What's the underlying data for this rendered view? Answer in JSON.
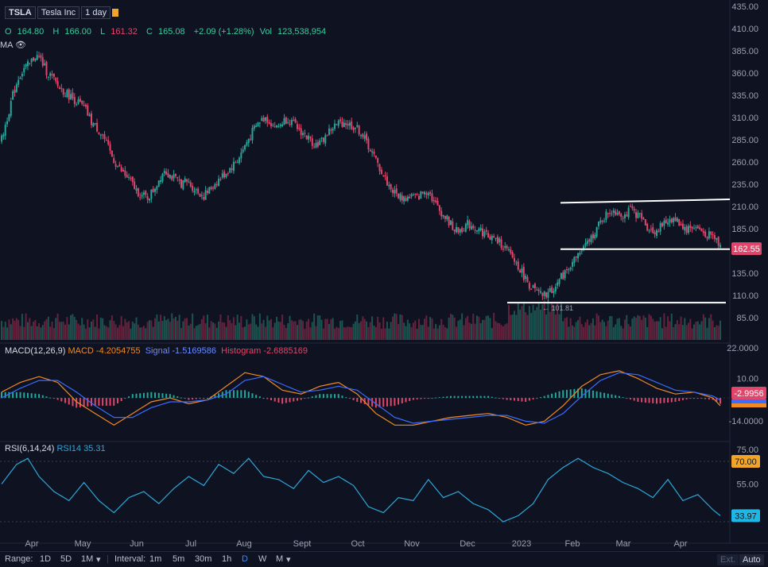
{
  "header": {
    "symbol": "TSLA",
    "name": "Tesla Inc",
    "interval": "1 day"
  },
  "ohlc": {
    "o_label": "O",
    "o": "164.80",
    "h_label": "H",
    "h": "166.00",
    "l_label": "L",
    "l": "161.32",
    "c_label": "C",
    "c": "165.08",
    "change": "+2.09 (+1.28%)",
    "vol_label": "Vol",
    "vol": "123,538,954"
  },
  "ma_label": "MA",
  "macd": {
    "label": "MACD(12,26,9)",
    "macd_text": "MACD -4.2054755",
    "signal_text": "Signal -1.5169586",
    "hist_text": "Histogram -2.6885169",
    "badge_hist": "-2.9956",
    "badge_signal_color": "#3a6cff",
    "badge_macd_color": "#f08a22",
    "yticks": [
      "22.0000",
      "10.00",
      "-14.0000"
    ]
  },
  "rsi": {
    "label": "RSI(6,14,24)",
    "rsi_text": "RSI14 35.31",
    "badge_upper": "70.00",
    "badge_value": "33.97",
    "yticks": [
      "75.00",
      "55.00"
    ]
  },
  "price": {
    "yticks": [
      "435.00",
      "410.00",
      "385.00",
      "360.00",
      "335.00",
      "310.00",
      "285.00",
      "260.00",
      "235.00",
      "210.00",
      "185.00",
      "160.00",
      "135.00",
      "110.00",
      "85.00"
    ],
    "current_badge": "162.55",
    "low_annotation": "101.81"
  },
  "xaxis": {
    "labels": [
      "Apr",
      "May",
      "Jun",
      "Jul",
      "Aug",
      "Sept",
      "Oct",
      "Nov",
      "Dec",
      "2023",
      "Feb",
      "Mar",
      "Apr"
    ]
  },
  "bottombar": {
    "range_label": "Range:",
    "ranges": [
      "1D",
      "5D",
      "1M"
    ],
    "interval_label": "Interval:",
    "intervals": [
      "1m",
      "5m",
      "30m",
      "1h",
      "D",
      "W",
      "M"
    ],
    "active_interval": "D",
    "ext": "Ext.",
    "auto": "Auto"
  },
  "colors": {
    "up": "#26a69a",
    "down": "#e0466a",
    "macd_line": "#f08a22",
    "signal_line": "#3a6cff",
    "rsi_line": "#2aa8d8",
    "trendline": "#ffffff"
  },
  "chart_data": {
    "type": "candlestick",
    "symbol": "TSLA",
    "y_range": [
      85,
      435
    ],
    "x_labels": [
      "Apr",
      "May",
      "Jun",
      "Jul",
      "Aug",
      "Sept",
      "Oct",
      "Nov",
      "Dec",
      "2023",
      "Feb",
      "Mar",
      "Apr"
    ],
    "price_path": [
      [
        0,
        285
      ],
      [
        3,
        310
      ],
      [
        6,
        335
      ],
      [
        9,
        355
      ],
      [
        12,
        365
      ],
      [
        15,
        370
      ],
      [
        18,
        380
      ],
      [
        21,
        375
      ],
      [
        24,
        362
      ],
      [
        27,
        355
      ],
      [
        30,
        345
      ],
      [
        33,
        340
      ],
      [
        36,
        335
      ],
      [
        39,
        330
      ],
      [
        42,
        325
      ],
      [
        45,
        318
      ],
      [
        48,
        305
      ],
      [
        51,
        298
      ],
      [
        54,
        290
      ],
      [
        57,
        275
      ],
      [
        60,
        262
      ],
      [
        63,
        252
      ],
      [
        66,
        245
      ],
      [
        69,
        238
      ],
      [
        72,
        228
      ],
      [
        75,
        222
      ],
      [
        78,
        220
      ],
      [
        81,
        228
      ],
      [
        84,
        240
      ],
      [
        87,
        252
      ],
      [
        90,
        245
      ],
      [
        93,
        240
      ],
      [
        96,
        236
      ],
      [
        99,
        238
      ],
      [
        102,
        232
      ],
      [
        105,
        226
      ],
      [
        108,
        222
      ],
      [
        111,
        228
      ],
      [
        114,
        236
      ],
      [
        117,
        242
      ],
      [
        120,
        248
      ],
      [
        123,
        255
      ],
      [
        126,
        262
      ],
      [
        129,
        274
      ],
      [
        132,
        286
      ],
      [
        135,
        297
      ],
      [
        138,
        306
      ],
      [
        141,
        310
      ],
      [
        144,
        304
      ],
      [
        147,
        298
      ],
      [
        150,
        305
      ],
      [
        153,
        309
      ],
      [
        156,
        302
      ],
      [
        159,
        296
      ],
      [
        162,
        290
      ],
      [
        165,
        284
      ],
      [
        168,
        280
      ],
      [
        171,
        283
      ],
      [
        174,
        292
      ],
      [
        177,
        299
      ],
      [
        180,
        303
      ],
      [
        183,
        305
      ],
      [
        186,
        302
      ],
      [
        189,
        299
      ],
      [
        192,
        293
      ],
      [
        195,
        282
      ],
      [
        198,
        270
      ],
      [
        201,
        257
      ],
      [
        204,
        245
      ],
      [
        207,
        233
      ],
      [
        210,
        225
      ],
      [
        213,
        221
      ],
      [
        216,
        219
      ],
      [
        219,
        222
      ],
      [
        222,
        220
      ],
      [
        225,
        225
      ],
      [
        228,
        229
      ],
      [
        231,
        215
      ],
      [
        234,
        206
      ],
      [
        237,
        198
      ],
      [
        240,
        190
      ],
      [
        243,
        182
      ],
      [
        246,
        185
      ],
      [
        249,
        190
      ],
      [
        252,
        188
      ],
      [
        255,
        184
      ],
      [
        258,
        180
      ],
      [
        261,
        176
      ],
      [
        264,
        172
      ],
      [
        267,
        168
      ],
      [
        270,
        160
      ],
      [
        273,
        152
      ],
      [
        276,
        143
      ],
      [
        279,
        132
      ],
      [
        282,
        122
      ],
      [
        285,
        115
      ],
      [
        288,
        110
      ],
      [
        291,
        111
      ],
      [
        294,
        116
      ],
      [
        297,
        124
      ],
      [
        300,
        133
      ],
      [
        303,
        142
      ],
      [
        306,
        150
      ],
      [
        309,
        158
      ],
      [
        312,
        165
      ],
      [
        315,
        175
      ],
      [
        318,
        185
      ],
      [
        321,
        195
      ],
      [
        324,
        203
      ],
      [
        327,
        206
      ],
      [
        330,
        203
      ],
      [
        333,
        200
      ],
      [
        336,
        206
      ],
      [
        339,
        202
      ],
      [
        342,
        196
      ],
      [
        345,
        187
      ],
      [
        348,
        181
      ],
      [
        351,
        185
      ],
      [
        354,
        190
      ],
      [
        357,
        196
      ],
      [
        360,
        195
      ],
      [
        363,
        190
      ],
      [
        366,
        184
      ],
      [
        369,
        187
      ],
      [
        372,
        185
      ],
      [
        375,
        180
      ],
      [
        378,
        178
      ],
      [
        381,
        175
      ],
      [
        384,
        166
      ]
    ],
    "trendlines": [
      {
        "name": "resistance",
        "price": 215
      },
      {
        "name": "support",
        "price": 162
      },
      {
        "name": "floor",
        "price": 101.81
      }
    ],
    "current_price": 162.55,
    "macd_range": [
      -20,
      25
    ],
    "macd_path": [
      [
        0,
        3
      ],
      [
        10,
        8
      ],
      [
        20,
        11
      ],
      [
        30,
        8
      ],
      [
        40,
        -2
      ],
      [
        50,
        -8
      ],
      [
        60,
        -14
      ],
      [
        70,
        -8
      ],
      [
        80,
        -2
      ],
      [
        90,
        0
      ],
      [
        100,
        -3
      ],
      [
        110,
        -1
      ],
      [
        120,
        6
      ],
      [
        130,
        13
      ],
      [
        140,
        11
      ],
      [
        150,
        4
      ],
      [
        160,
        2
      ],
      [
        170,
        6
      ],
      [
        180,
        8
      ],
      [
        190,
        2
      ],
      [
        200,
        -8
      ],
      [
        210,
        -14
      ],
      [
        220,
        -14
      ],
      [
        230,
        -12
      ],
      [
        240,
        -10
      ],
      [
        250,
        -9
      ],
      [
        260,
        -8
      ],
      [
        270,
        -10
      ],
      [
        280,
        -14
      ],
      [
        290,
        -12
      ],
      [
        300,
        -4
      ],
      [
        310,
        6
      ],
      [
        320,
        12
      ],
      [
        330,
        14
      ],
      [
        340,
        10
      ],
      [
        350,
        5
      ],
      [
        360,
        2
      ],
      [
        370,
        3
      ],
      [
        380,
        0
      ],
      [
        384,
        -4
      ]
    ],
    "signal_path": [
      [
        0,
        0
      ],
      [
        10,
        5
      ],
      [
        20,
        9
      ],
      [
        30,
        9
      ],
      [
        40,
        3
      ],
      [
        50,
        -4
      ],
      [
        60,
        -10
      ],
      [
        70,
        -10
      ],
      [
        80,
        -5
      ],
      [
        90,
        -2
      ],
      [
        100,
        -2
      ],
      [
        110,
        -1
      ],
      [
        120,
        2
      ],
      [
        130,
        9
      ],
      [
        140,
        11
      ],
      [
        150,
        7
      ],
      [
        160,
        3
      ],
      [
        170,
        4
      ],
      [
        180,
        6
      ],
      [
        190,
        4
      ],
      [
        200,
        -3
      ],
      [
        210,
        -10
      ],
      [
        220,
        -13
      ],
      [
        230,
        -12
      ],
      [
        240,
        -11
      ],
      [
        250,
        -10
      ],
      [
        260,
        -9
      ],
      [
        270,
        -9
      ],
      [
        280,
        -12
      ],
      [
        290,
        -13
      ],
      [
        300,
        -8
      ],
      [
        310,
        1
      ],
      [
        320,
        9
      ],
      [
        330,
        13
      ],
      [
        340,
        12
      ],
      [
        350,
        8
      ],
      [
        360,
        4
      ],
      [
        370,
        3
      ],
      [
        380,
        1
      ],
      [
        384,
        -1
      ]
    ],
    "rsi_range": [
      20,
      80
    ],
    "rsi_path": [
      [
        0,
        55
      ],
      [
        8,
        68
      ],
      [
        14,
        72
      ],
      [
        20,
        60
      ],
      [
        28,
        50
      ],
      [
        36,
        44
      ],
      [
        44,
        56
      ],
      [
        52,
        44
      ],
      [
        60,
        36
      ],
      [
        68,
        46
      ],
      [
        76,
        50
      ],
      [
        84,
        42
      ],
      [
        92,
        52
      ],
      [
        100,
        60
      ],
      [
        108,
        54
      ],
      [
        116,
        68
      ],
      [
        124,
        62
      ],
      [
        132,
        72
      ],
      [
        140,
        60
      ],
      [
        148,
        58
      ],
      [
        156,
        52
      ],
      [
        164,
        64
      ],
      [
        172,
        56
      ],
      [
        180,
        60
      ],
      [
        188,
        54
      ],
      [
        196,
        40
      ],
      [
        204,
        36
      ],
      [
        212,
        46
      ],
      [
        220,
        44
      ],
      [
        228,
        58
      ],
      [
        236,
        46
      ],
      [
        244,
        50
      ],
      [
        252,
        42
      ],
      [
        260,
        38
      ],
      [
        268,
        30
      ],
      [
        276,
        34
      ],
      [
        284,
        42
      ],
      [
        292,
        58
      ],
      [
        300,
        66
      ],
      [
        308,
        72
      ],
      [
        316,
        66
      ],
      [
        324,
        62
      ],
      [
        332,
        56
      ],
      [
        340,
        52
      ],
      [
        348,
        46
      ],
      [
        356,
        58
      ],
      [
        364,
        44
      ],
      [
        372,
        48
      ],
      [
        380,
        38
      ],
      [
        384,
        34
      ]
    ]
  }
}
